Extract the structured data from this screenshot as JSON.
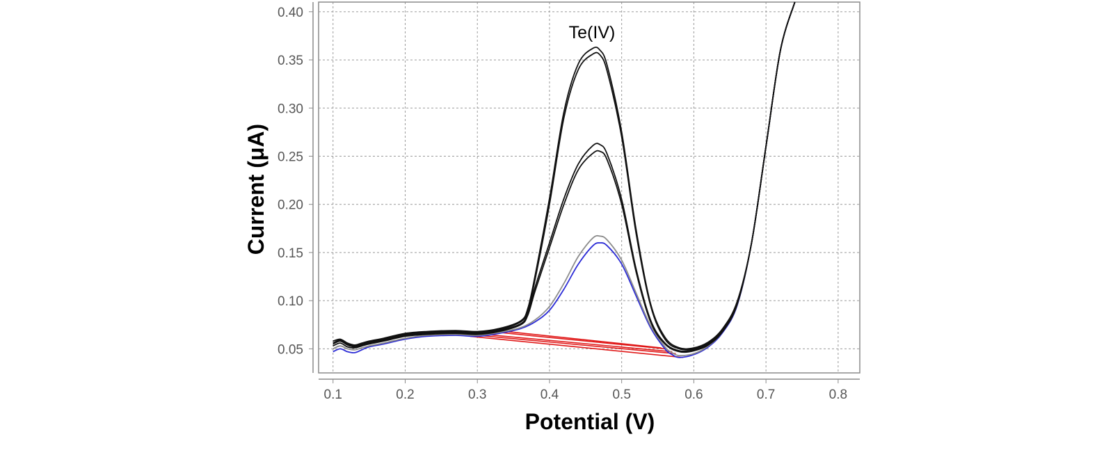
{
  "chart_data": {
    "type": "line",
    "title": "",
    "xlabel": "Potential (V)",
    "ylabel": "Current (μA)",
    "annotation": "Te(IV)",
    "xlim": [
      0.08,
      0.83
    ],
    "ylim": [
      0.025,
      0.41
    ],
    "xticks": [
      0.1,
      0.2,
      0.3,
      0.4,
      0.5,
      0.6,
      0.7,
      0.8
    ],
    "xtick_labels": [
      "0.1",
      "0.2",
      "0.3",
      "0.4",
      "0.5",
      "0.6",
      "0.7",
      "0.8"
    ],
    "yticks": [
      0.05,
      0.1,
      0.15,
      0.2,
      0.25,
      0.3,
      0.35,
      0.4
    ],
    "ytick_labels": [
      "0.05",
      "0.10",
      "0.15",
      "0.20",
      "0.25",
      "0.30",
      "0.35",
      "0.40"
    ],
    "grid": true,
    "legend": "none",
    "colors": {
      "black": "#111111",
      "gray": "#8c8c8c",
      "blue": "#2b2bd6",
      "red": "#e01818",
      "frame": "#8a8a8a"
    },
    "series": [
      {
        "color": "#2b2bd6",
        "x": [
          0.1,
          0.11,
          0.12,
          0.13,
          0.14,
          0.15,
          0.17,
          0.2,
          0.23,
          0.27,
          0.3,
          0.33,
          0.36,
          0.38,
          0.4,
          0.42,
          0.44,
          0.46,
          0.47,
          0.48,
          0.5,
          0.52,
          0.54,
          0.56,
          0.57,
          0.58,
          0.6,
          0.62,
          0.64,
          0.66,
          0.68,
          0.7,
          0.72,
          0.74
        ],
        "y": [
          0.047,
          0.05,
          0.047,
          0.046,
          0.049,
          0.052,
          0.055,
          0.06,
          0.063,
          0.064,
          0.063,
          0.066,
          0.071,
          0.078,
          0.09,
          0.112,
          0.138,
          0.157,
          0.16,
          0.157,
          0.138,
          0.105,
          0.072,
          0.05,
          0.044,
          0.041,
          0.044,
          0.052,
          0.067,
          0.095,
          0.16,
          0.26,
          0.36,
          0.41
        ]
      },
      {
        "color": "#8c8c8c",
        "x": [
          0.1,
          0.11,
          0.12,
          0.13,
          0.14,
          0.15,
          0.17,
          0.2,
          0.23,
          0.27,
          0.3,
          0.33,
          0.36,
          0.38,
          0.4,
          0.42,
          0.44,
          0.46,
          0.47,
          0.48,
          0.5,
          0.52,
          0.54,
          0.56,
          0.57,
          0.58,
          0.6,
          0.62,
          0.64,
          0.66,
          0.68,
          0.7,
          0.72,
          0.74
        ],
        "y": [
          0.05,
          0.053,
          0.05,
          0.049,
          0.051,
          0.053,
          0.056,
          0.061,
          0.064,
          0.065,
          0.064,
          0.067,
          0.072,
          0.08,
          0.094,
          0.118,
          0.146,
          0.165,
          0.167,
          0.163,
          0.142,
          0.108,
          0.074,
          0.052,
          0.046,
          0.043,
          0.045,
          0.053,
          0.068,
          0.096,
          0.16,
          0.26,
          0.36,
          0.41
        ]
      },
      {
        "color": "#111111",
        "x": [
          0.1,
          0.11,
          0.12,
          0.13,
          0.14,
          0.15,
          0.17,
          0.2,
          0.23,
          0.27,
          0.3,
          0.33,
          0.36,
          0.37,
          0.38,
          0.4,
          0.42,
          0.44,
          0.46,
          0.47,
          0.48,
          0.5,
          0.52,
          0.54,
          0.56,
          0.58,
          0.6,
          0.62,
          0.64,
          0.66,
          0.68,
          0.7,
          0.72,
          0.74
        ],
        "y": [
          0.053,
          0.056,
          0.052,
          0.051,
          0.053,
          0.055,
          0.058,
          0.063,
          0.065,
          0.066,
          0.065,
          0.068,
          0.075,
          0.085,
          0.11,
          0.155,
          0.2,
          0.236,
          0.253,
          0.255,
          0.246,
          0.2,
          0.13,
          0.078,
          0.055,
          0.047,
          0.048,
          0.054,
          0.068,
          0.096,
          0.16,
          0.26,
          0.36,
          0.41
        ]
      },
      {
        "color": "#111111",
        "x": [
          0.1,
          0.11,
          0.12,
          0.13,
          0.14,
          0.15,
          0.17,
          0.2,
          0.23,
          0.27,
          0.3,
          0.33,
          0.36,
          0.37,
          0.38,
          0.4,
          0.42,
          0.44,
          0.46,
          0.47,
          0.48,
          0.5,
          0.52,
          0.54,
          0.56,
          0.58,
          0.6,
          0.62,
          0.64,
          0.66,
          0.68,
          0.7,
          0.72,
          0.74
        ],
        "y": [
          0.055,
          0.058,
          0.054,
          0.052,
          0.054,
          0.056,
          0.059,
          0.064,
          0.066,
          0.067,
          0.066,
          0.069,
          0.076,
          0.087,
          0.114,
          0.16,
          0.206,
          0.242,
          0.261,
          0.262,
          0.252,
          0.205,
          0.133,
          0.08,
          0.056,
          0.048,
          0.049,
          0.055,
          0.069,
          0.097,
          0.16,
          0.26,
          0.36,
          0.41
        ]
      },
      {
        "color": "#111111",
        "x": [
          0.1,
          0.11,
          0.12,
          0.13,
          0.14,
          0.15,
          0.17,
          0.2,
          0.23,
          0.27,
          0.3,
          0.33,
          0.36,
          0.37,
          0.38,
          0.4,
          0.42,
          0.44,
          0.46,
          0.47,
          0.48,
          0.5,
          0.52,
          0.54,
          0.56,
          0.58,
          0.6,
          0.62,
          0.64,
          0.66,
          0.68,
          0.7,
          0.72,
          0.74
        ],
        "y": [
          0.056,
          0.059,
          0.055,
          0.053,
          0.055,
          0.057,
          0.06,
          0.065,
          0.067,
          0.068,
          0.067,
          0.07,
          0.078,
          0.09,
          0.122,
          0.2,
          0.29,
          0.34,
          0.356,
          0.355,
          0.338,
          0.27,
          0.17,
          0.095,
          0.06,
          0.05,
          0.05,
          0.056,
          0.07,
          0.098,
          0.16,
          0.26,
          0.36,
          0.41
        ]
      },
      {
        "color": "#111111",
        "x": [
          0.1,
          0.11,
          0.12,
          0.13,
          0.14,
          0.15,
          0.17,
          0.2,
          0.23,
          0.27,
          0.3,
          0.33,
          0.36,
          0.37,
          0.38,
          0.4,
          0.42,
          0.44,
          0.46,
          0.47,
          0.48,
          0.5,
          0.52,
          0.54,
          0.56,
          0.58,
          0.6,
          0.62,
          0.64,
          0.66,
          0.68,
          0.7,
          0.72,
          0.74
        ],
        "y": [
          0.058,
          0.06,
          0.056,
          0.054,
          0.056,
          0.058,
          0.061,
          0.066,
          0.068,
          0.069,
          0.068,
          0.071,
          0.079,
          0.092,
          0.126,
          0.206,
          0.296,
          0.346,
          0.362,
          0.36,
          0.344,
          0.275,
          0.174,
          0.097,
          0.062,
          0.051,
          0.051,
          0.057,
          0.071,
          0.099,
          0.16,
          0.26,
          0.36,
          0.41
        ]
      }
    ],
    "baselines": [
      {
        "color": "#e01818",
        "x": [
          0.29,
          0.585
        ],
        "y": [
          0.063,
          0.041
        ]
      },
      {
        "color": "#e01818",
        "x": [
          0.3,
          0.575
        ],
        "y": [
          0.064,
          0.045
        ]
      },
      {
        "color": "#e01818",
        "x": [
          0.31,
          0.57
        ],
        "y": [
          0.065,
          0.047
        ]
      },
      {
        "color": "#e01818",
        "x": [
          0.33,
          0.56
        ],
        "y": [
          0.067,
          0.05
        ]
      },
      {
        "color": "#e01818",
        "x": [
          0.34,
          0.555
        ],
        "y": [
          0.068,
          0.051
        ]
      }
    ]
  }
}
